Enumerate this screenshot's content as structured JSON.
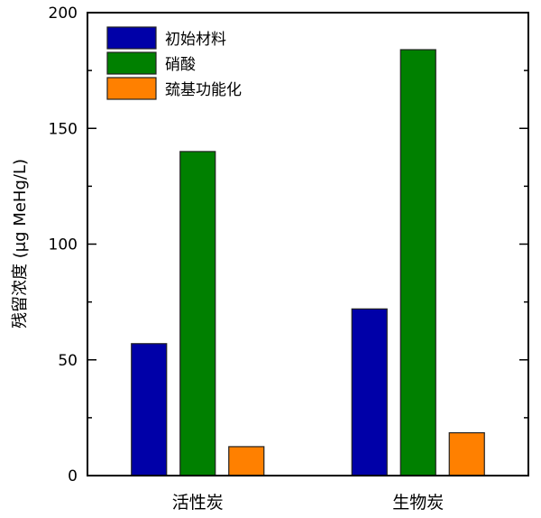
{
  "chart_data": {
    "type": "bar",
    "title": "",
    "xlabel": "",
    "ylabel": "残留浓度 (μg MeHg/L)",
    "ylim": [
      0,
      200
    ],
    "yticks": [
      0,
      50,
      100,
      150,
      200
    ],
    "yminor_step": 25,
    "grid": false,
    "legend_position": "top-left",
    "categories": [
      "活性炭",
      "生物炭"
    ],
    "series": [
      {
        "name": "初始材料",
        "color": "#0000A8",
        "values": [
          57,
          72
        ]
      },
      {
        "name": "硝酸",
        "color": "#008000",
        "values": [
          140,
          184
        ]
      },
      {
        "name": "巯基功能化",
        "color": "#FF8000",
        "values": [
          12.5,
          18.5
        ]
      }
    ]
  }
}
